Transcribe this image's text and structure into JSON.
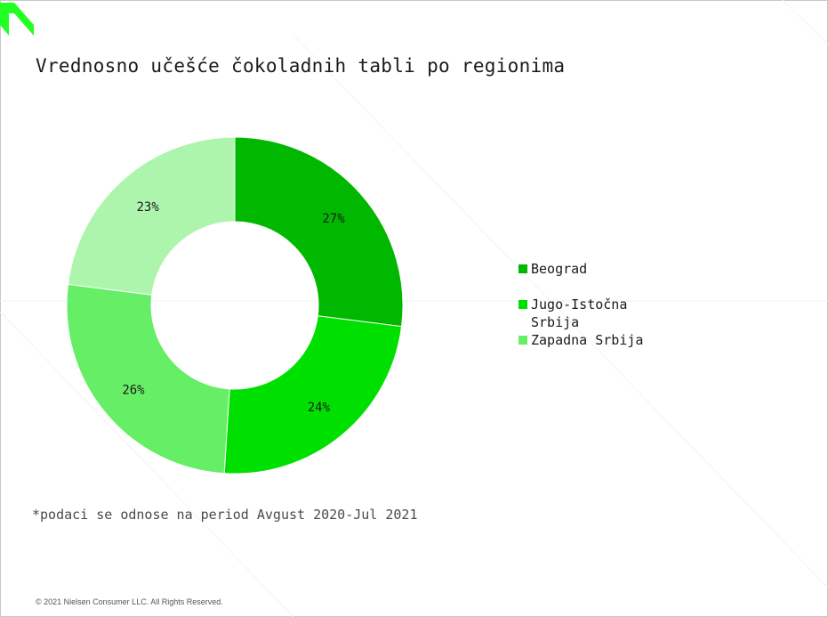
{
  "title": "Vrednosno učešće čokoladnih tabli po regionima",
  "footnote": "*podaci se odnose na period Avgust 2020-Jul 2021",
  "copyright": "© 2021 Nielsen Consumer LLC. All Rights Reserved.",
  "colors": {
    "beograd": "#00b800",
    "jugo": "#00e000",
    "zapadna": "#66ee66",
    "ostalo": "#adf5ad",
    "logo": "#22ff22"
  },
  "legend": [
    {
      "label": "Beograd",
      "color": "#00b800"
    },
    {
      "label": "Jugo-Istočna Srbija",
      "color": "#00e000"
    },
    {
      "label": "Zapadna Srbija",
      "color": "#66ee66"
    }
  ],
  "chart_data": {
    "type": "pie",
    "style": "donut",
    "title": "Vrednosno učešće čokoladnih tabli po regionima",
    "legend_position": "right",
    "slices": [
      {
        "value": 27,
        "label": "27%",
        "color": "#00b800"
      },
      {
        "value": 24,
        "label": "24%",
        "color": "#00e000"
      },
      {
        "value": 26,
        "label": "26%",
        "color": "#66ee66"
      },
      {
        "value": 23,
        "label": "23%",
        "color": "#adf5ad"
      }
    ]
  }
}
